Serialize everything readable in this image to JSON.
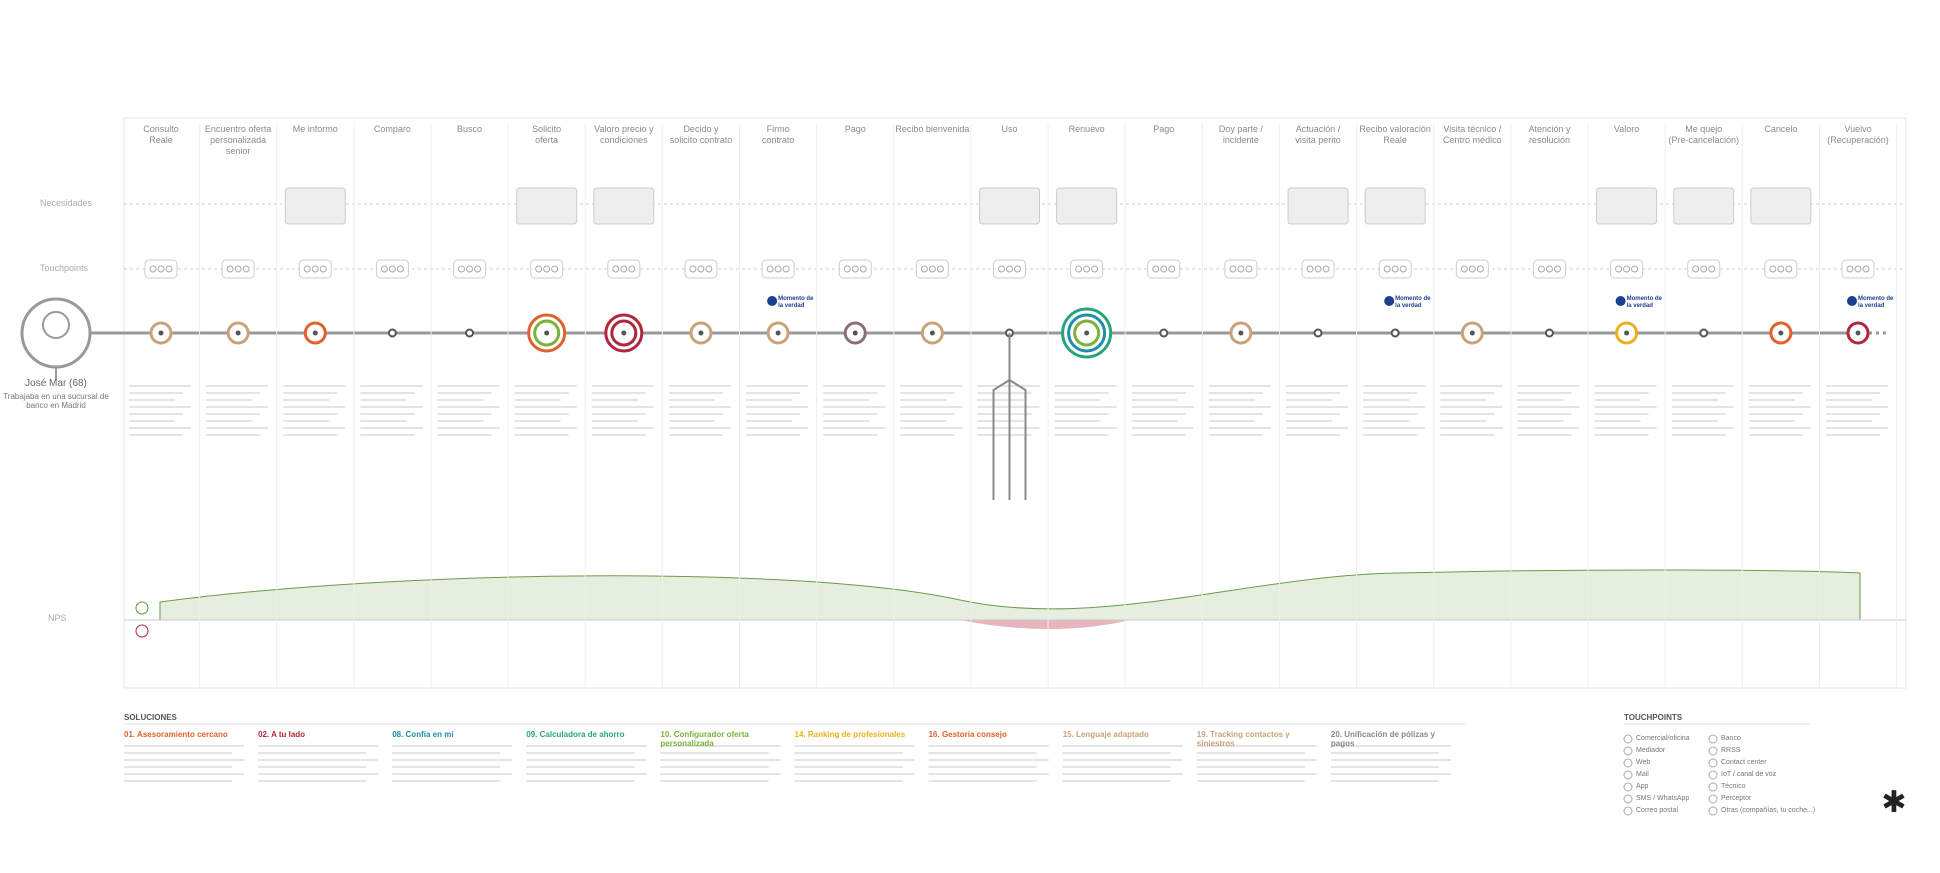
{
  "persona": {
    "name": "José Mar (68)",
    "description": "Trabajaba en una sucursal de banco en Madrid"
  },
  "rows": {
    "needs": "Necesidades",
    "touchpoints": "Touchpoints",
    "nps": "NPS"
  },
  "moment_label": "Momento de la verdad",
  "stages": [
    "Consulto\nReale",
    "Encuentro oferta\npersonalizada senior",
    "Me informo",
    "Comparo",
    "Busco",
    "Solicito\noferta",
    "Valoro precio y\ncondiciones",
    "Decido y\nsolicito contrato",
    "Firmo\ncontrato",
    "Pago",
    "Recibo bienvenida",
    "Uso",
    "Renuevo",
    "Pago",
    "Doy parte /\nincidente",
    "Actuación /\nvisita perito",
    "Recibo valoración\nReale",
    "Visita técnico /\nCentro médico",
    "Atención y\nresolución",
    "Valoro",
    "Me quejo\n(Pre-cancelación)",
    "Cancelo",
    "Vuelvo\n(Recuperación)"
  ],
  "solutions": {
    "title": "SOLUCIONES",
    "items": [
      "01. Asesoramiento cercano",
      "02. A tu lado",
      "08. Confía en mí",
      "09. Calculadora de ahorro",
      "10. Configurador oferta personalizada",
      "14. Ranking de profesionales",
      "16. Gestoría consejo",
      "15. Lenguaje adaptado",
      "19. Tracking contactos y siniestros",
      "20. Unificación de pólizas y pagos"
    ]
  },
  "touchpoint_legend": {
    "title": "TOUCHPOINTS",
    "items": [
      "Comercial/oficina",
      "Mediador",
      "Web",
      "Mail",
      "App",
      "SMS / WhatsApp",
      "Correo postal",
      "Banco",
      "RRSS",
      "Contact center",
      "IoT / canal de voz",
      "Técnico",
      "Perceptor",
      "Otras (compañías, tu coche...)"
    ]
  }
}
